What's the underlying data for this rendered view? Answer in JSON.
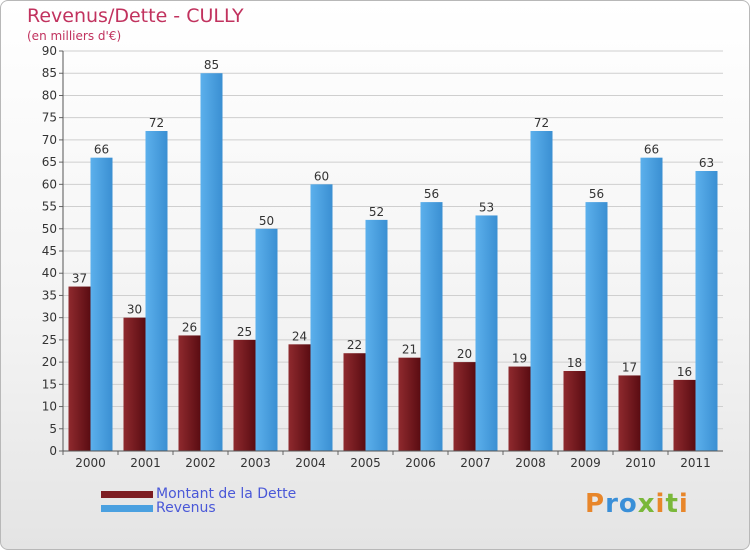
{
  "chart_data": {
    "type": "bar",
    "title": "Revenus/Dette - CULLY",
    "subtitle": "(en milliers d'€)",
    "categories": [
      "2000",
      "2001",
      "2002",
      "2003",
      "2004",
      "2005",
      "2006",
      "2007",
      "2008",
      "2009",
      "2010",
      "2011"
    ],
    "series": [
      {
        "name": "Montant de la Dette",
        "values": [
          37,
          30,
          26,
          25,
          24,
          22,
          21,
          20,
          19,
          18,
          17,
          16
        ],
        "color": "#7d1d22"
      },
      {
        "name": "Revenus",
        "values": [
          66,
          72,
          85,
          50,
          60,
          52,
          56,
          53,
          72,
          56,
          66,
          63
        ],
        "color": "#4aa0e0"
      }
    ],
    "ylim": [
      0,
      90
    ],
    "yticks": [
      0,
      5,
      10,
      15,
      20,
      25,
      30,
      35,
      40,
      45,
      50,
      55,
      60,
      65,
      70,
      75,
      80,
      85,
      90
    ],
    "grid": true,
    "legend_position": "bottom-left"
  },
  "logo": {
    "text": "Proxiti",
    "letter_colors": [
      "#e8862a",
      "#3a8fd8",
      "#3a8fd8",
      "#7ab83a",
      "#e8862a",
      "#7ab83a",
      "#e8862a"
    ]
  }
}
